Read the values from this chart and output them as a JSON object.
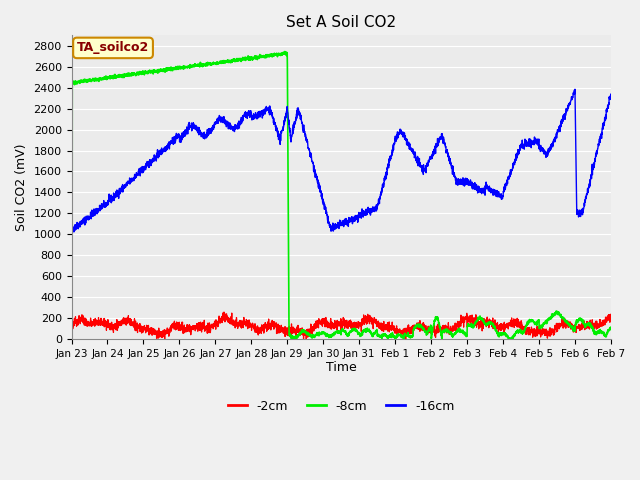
{
  "title": "Set A Soil CO2",
  "ylabel": "Soil CO2 (mV)",
  "xlabel": "Time",
  "label_box_text": "TA_soilco2",
  "ylim": [
    0,
    2900
  ],
  "yticks": [
    0,
    200,
    400,
    600,
    800,
    1000,
    1200,
    1400,
    1600,
    1800,
    2000,
    2200,
    2400,
    2600,
    2800
  ],
  "fig_facecolor": "#f0f0f0",
  "plot_facecolor": "#ebebeb",
  "grid_color": "#ffffff",
  "tick_labels": [
    "Jan 23",
    "Jan 24",
    "Jan 25",
    "Jan 26",
    "Jan 27",
    "Jan 28",
    "Jan 29",
    "Jan 30",
    "Jan 31",
    "Feb 1",
    "Feb 2",
    "Feb 3",
    "Feb 4",
    "Feb 5",
    "Feb 6",
    "Feb 7"
  ],
  "legend_entries": [
    "-2cm",
    "-8cm",
    "-16cm"
  ],
  "line_colors": [
    "#ff0000",
    "#00ee00",
    "#0000ff"
  ],
  "label_box_facecolor": "#ffffcc",
  "label_box_edgecolor": "#cc8800",
  "label_text_color": "#880000"
}
